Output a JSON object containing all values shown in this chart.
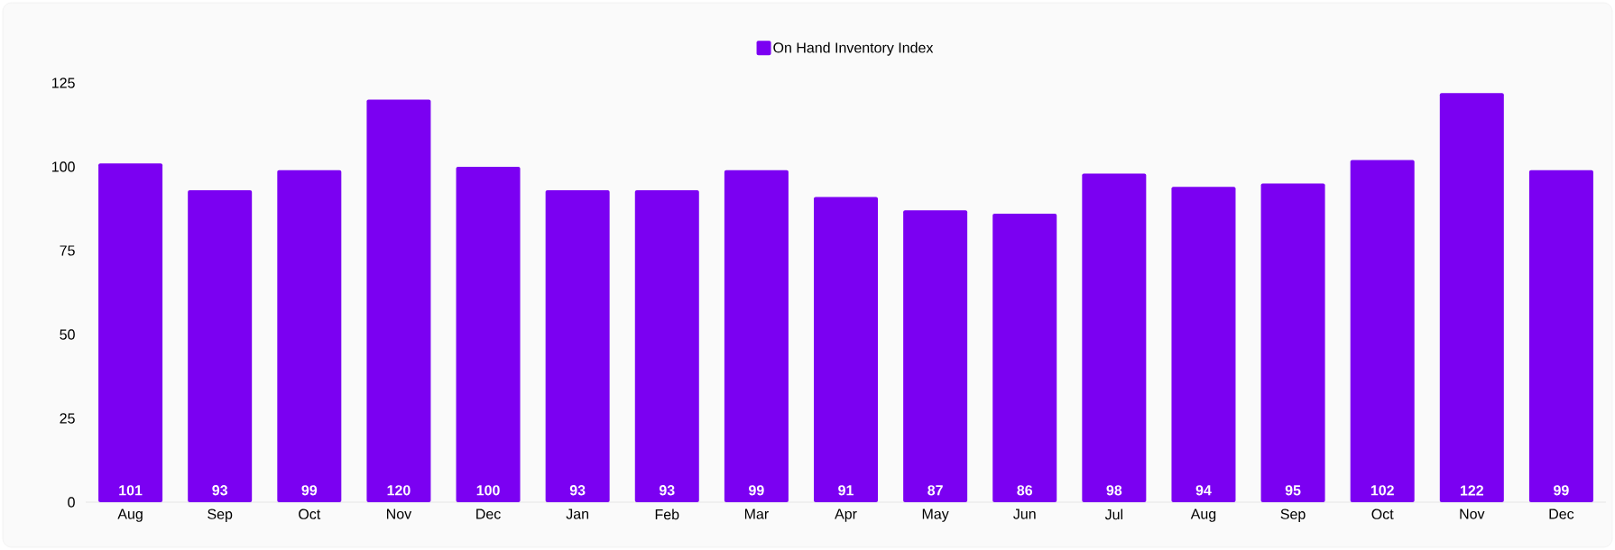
{
  "chart_data": {
    "type": "bar",
    "categories": [
      "Aug",
      "Sep",
      "Oct",
      "Nov",
      "Dec",
      "Jan",
      "Feb",
      "Mar",
      "Apr",
      "May",
      "Jun",
      "Jul",
      "Aug",
      "Sep",
      "Oct",
      "Nov",
      "Dec"
    ],
    "series": [
      {
        "name": "On Hand Inventory Index",
        "color": "#7b00f2",
        "values": [
          101,
          93,
          99,
          120,
          100,
          93,
          93,
          99,
          91,
          87,
          86,
          98,
          94,
          95,
          102,
          122,
          99
        ]
      }
    ],
    "ylim": [
      0,
      125
    ],
    "yticks": [
      0,
      25,
      50,
      75,
      100,
      125
    ],
    "data_labels": true,
    "legend": "top",
    "grid": false
  }
}
